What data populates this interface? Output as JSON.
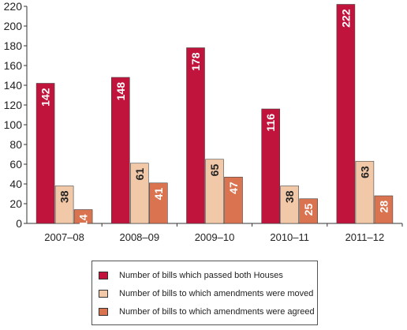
{
  "chart_data": {
    "type": "bar",
    "categories": [
      "2007–08",
      "2008–09",
      "2009–10",
      "2010–11",
      "2011–12"
    ],
    "series": [
      {
        "name": "Number of bills which passed both Houses",
        "values": [
          142,
          148,
          178,
          116,
          222
        ],
        "color": "#c0143c"
      },
      {
        "name": "Number of bills to which amendments were moved",
        "values": [
          38,
          61,
          65,
          38,
          63
        ],
        "color": "#f1c9a8"
      },
      {
        "name": "Number of bills to which amendments were agreed",
        "values": [
          14,
          41,
          47,
          25,
          28
        ],
        "color": "#d97350"
      }
    ],
    "yticks": [
      0,
      20,
      40,
      60,
      80,
      100,
      120,
      140,
      160,
      180,
      200,
      220
    ],
    "ylim": [
      0,
      220
    ],
    "grid": false,
    "legend_position": "bottom-center",
    "data_label_colors": {
      "dark_bar": "#ffffff",
      "light_bar": "#222222"
    }
  }
}
